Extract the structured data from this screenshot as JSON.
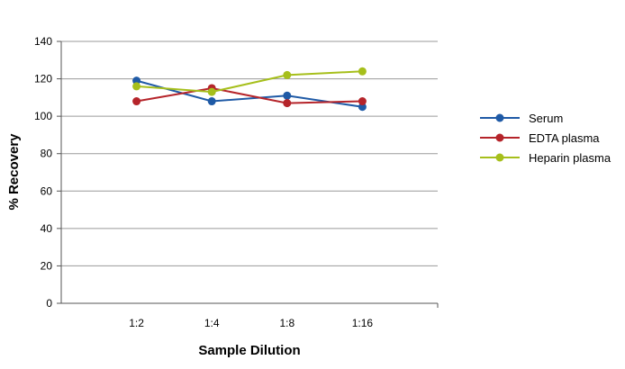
{
  "chart_data": {
    "type": "line",
    "title": "",
    "xlabel": "Sample Dilution",
    "ylabel": "% Recovery",
    "categories": [
      "1:2",
      "1:4",
      "1:8",
      "1:16"
    ],
    "ylim": [
      0,
      140
    ],
    "yticks": [
      0,
      20,
      40,
      60,
      80,
      100,
      120,
      140
    ],
    "grid": true,
    "legend_position": "right",
    "series": [
      {
        "name": "Serum",
        "color": "#1f5aa6",
        "values": [
          119,
          108,
          111,
          105
        ]
      },
      {
        "name": "EDTA plasma",
        "color": "#b5242a",
        "values": [
          108,
          115,
          107,
          108
        ]
      },
      {
        "name": "Heparin plasma",
        "color": "#a6bf1b",
        "values": [
          116,
          113,
          122,
          124
        ]
      }
    ]
  }
}
